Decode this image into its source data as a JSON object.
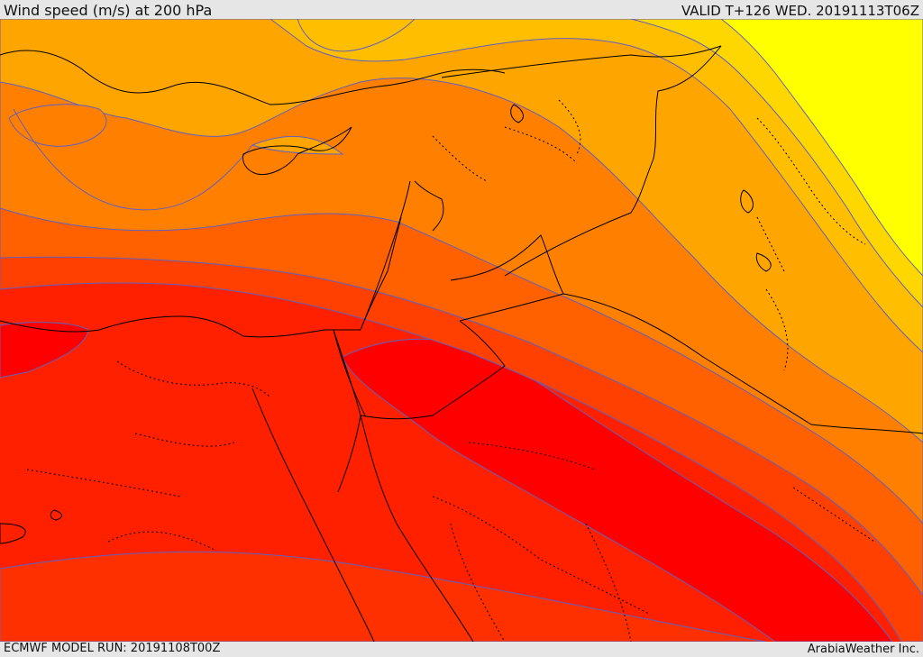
{
  "header": {
    "title": "Wind speed (m/s) at 200 hPa",
    "valid": "VALID T+126 WED. 20191113T06Z"
  },
  "footer": {
    "model_run": "ECMWF MODEL RUN: 20191108T00Z",
    "credit": "ArabiaWeather Inc."
  },
  "map": {
    "field": "wind speed at 200 hPa",
    "palette": {
      "yellow": "#ffff00",
      "gold": "#ffd700",
      "amber": "#ffbf00",
      "light-orange": "#ffa500",
      "orange": "#ff8000",
      "dark-orange": "#ff6000",
      "red-orange": "#ff4000",
      "orange-red": "#ff2000",
      "red": "#ff0000"
    },
    "contour_color": "#6060c0",
    "coastline_color": "#000000"
  }
}
